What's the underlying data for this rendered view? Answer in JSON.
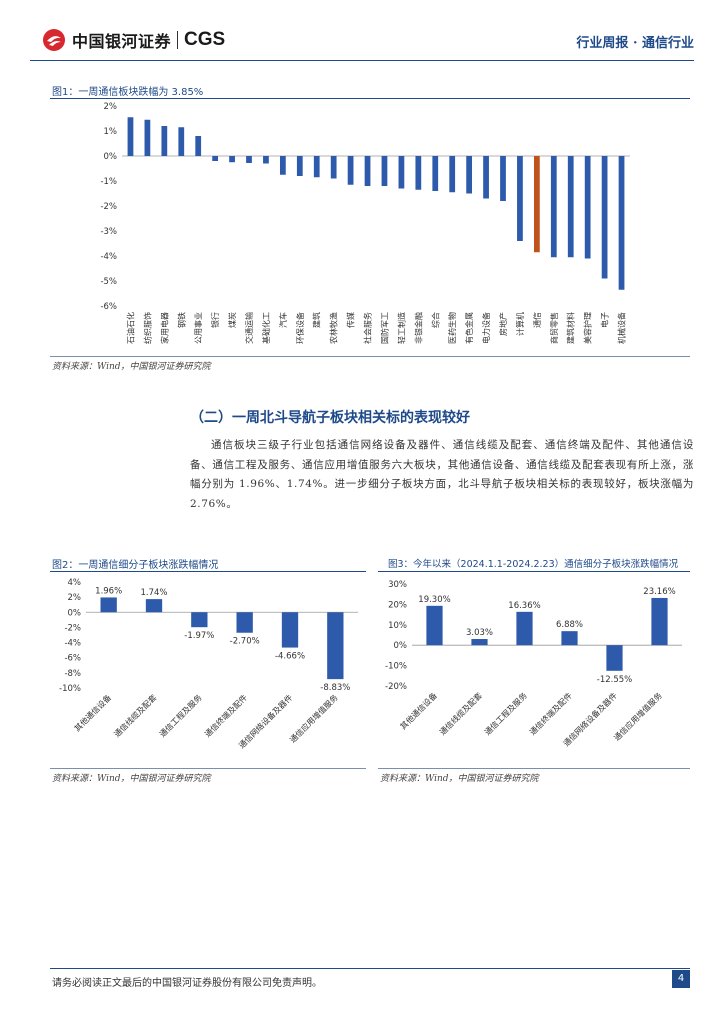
{
  "header": {
    "logo_cn": "中国银河证券",
    "logo_en": "CGS",
    "report_label": "行业周报 · 通信行业"
  },
  "figure1": {
    "title": "图1：一周通信板块跌幅为 3.85%",
    "source": "资料来源：Wind，中国银河证券研究院"
  },
  "section": {
    "heading": "（二）一周北斗导航子板块相关标的表现较好",
    "paragraph": "通信板块三级子行业包括通信网络设备及器件、通信线缆及配套、通信终端及配件、其他通信设备、通信工程及服务、通信应用增值服务六大板块，其他通信设备、通信线缆及配套表现有所上涨，涨幅分别为 1.96%、1.74%。进一步细分子板块方面，北斗导航子板块相关标的表现较好，板块涨幅为 2.76%。"
  },
  "figure2": {
    "title": "图2：一周通信细分子板块涨跌幅情况",
    "source": "资料来源：Wind，中国银河证券研究院"
  },
  "figure3": {
    "title": "图3：今年以来（2024.1.1-2024.2.23）通信细分子板块涨跌幅情况",
    "source": "资料来源：Wind，中国银河证券研究院"
  },
  "footer": {
    "disclaimer": "请务必阅读正文最后的中国银河证券股份有限公司免责声明。",
    "page": "4"
  },
  "colors": {
    "bar_blue": "#2e5aac",
    "bar_highlight": "#c0531c",
    "brand_red": "#d7282f",
    "brand_blue": "#1f4a8a"
  },
  "chart_data": [
    {
      "type": "bar",
      "title": "图1：一周通信板块跌幅为 3.85%",
      "categories": [
        "石油石化",
        "纺织服饰",
        "家用电器",
        "钢铁",
        "公用事业",
        "银行",
        "煤炭",
        "交通运输",
        "基础化工",
        "汽车",
        "环保设备",
        "建筑",
        "农林牧渔",
        "传媒",
        "社会服务",
        "国防军工",
        "轻工制造",
        "非银金融",
        "综合",
        "医药生物",
        "有色金属",
        "电力设备",
        "房地产",
        "计算机",
        "通信",
        "商贸零售",
        "建筑材料",
        "美容护理",
        "电子",
        "机械设备"
      ],
      "values": [
        1.55,
        1.45,
        1.2,
        1.15,
        0.8,
        -0.2,
        -0.25,
        -0.28,
        -0.3,
        -0.75,
        -0.8,
        -0.85,
        -0.9,
        -1.15,
        -1.2,
        -1.2,
        -1.3,
        -1.35,
        -1.4,
        -1.45,
        -1.5,
        -1.7,
        -1.8,
        -3.4,
        -3.85,
        -4.05,
        -4.05,
        -4.1,
        -4.9,
        -5.35
      ],
      "highlight_index": 24,
      "ylim": [
        -6,
        2
      ],
      "yticks": [
        "-6%",
        "-5%",
        "-4%",
        "-3%",
        "-2%",
        "-1%",
        "0%",
        "1%",
        "2%"
      ],
      "ytick_values": [
        -6,
        -5,
        -4,
        -3,
        -2,
        -1,
        0,
        1,
        2
      ]
    },
    {
      "type": "bar",
      "title": "图2：一周通信细分子板块涨跌幅情况",
      "categories": [
        "其他通信设备",
        "通信线缆及配套",
        "通信工程及服务",
        "通信终端及配件",
        "通信网络设备及器件",
        "通信应用增值服务"
      ],
      "values": [
        1.96,
        1.74,
        -1.97,
        -2.7,
        -4.66,
        -8.83
      ],
      "data_labels": [
        "1.96%",
        "1.74%",
        "-1.97%",
        "-2.70%",
        "-4.66%",
        "-8.83%"
      ],
      "ylim": [
        -10,
        4
      ],
      "yticks": [
        "4%",
        "2%",
        "0%",
        "-2%",
        "-4%",
        "-6%",
        "-8%",
        "-10%"
      ],
      "ytick_values": [
        4,
        2,
        0,
        -2,
        -4,
        -6,
        -8,
        -10
      ]
    },
    {
      "type": "bar",
      "title": "图3：今年以来（2024.1.1-2024.2.23）通信细分子板块涨跌幅情况",
      "categories": [
        "其他通信设备",
        "通信线缆及配套",
        "通信工程及服务",
        "通信终端及配件",
        "通信网络设备及器件",
        "通信应用增值服务"
      ],
      "values": [
        19.3,
        3.03,
        16.36,
        6.88,
        -12.55,
        23.16
      ],
      "data_labels": [
        "19.30%",
        "3.03%",
        "16.36%",
        "6.88%",
        "-12.55%",
        "23.16%"
      ],
      "ylim": [
        -20,
        30
      ],
      "yticks": [
        "30%",
        "20%",
        "10%",
        "0%",
        "-10%",
        "-20%"
      ],
      "ytick_values": [
        30,
        20,
        10,
        0,
        -10,
        -20
      ]
    }
  ]
}
